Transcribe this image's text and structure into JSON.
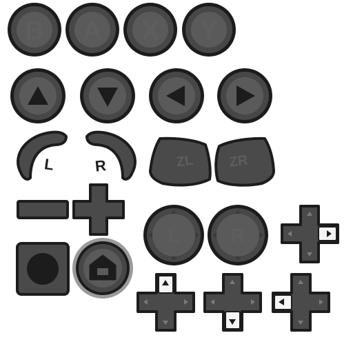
{
  "sheet": {
    "face_buttons": [
      {
        "name": "b",
        "label": "B"
      },
      {
        "name": "a",
        "label": "A"
      },
      {
        "name": "x",
        "label": "X"
      },
      {
        "name": "y",
        "label": "Y"
      }
    ],
    "arrow_buttons": [
      {
        "name": "up",
        "direction": "up"
      },
      {
        "name": "down",
        "direction": "down"
      },
      {
        "name": "left",
        "direction": "left"
      },
      {
        "name": "right",
        "direction": "right"
      }
    ],
    "shoulders": [
      {
        "name": "l",
        "label": "L"
      },
      {
        "name": "r",
        "label": "R"
      }
    ],
    "triggers": [
      {
        "name": "zl",
        "label": "ZL"
      },
      {
        "name": "zr",
        "label": "ZR"
      }
    ],
    "sticks": [
      {
        "name": "left",
        "label": "L"
      },
      {
        "name": "right",
        "label": "R"
      }
    ],
    "dpads": [
      {
        "name": "right-pressed",
        "pressed": "right"
      },
      {
        "name": "up-pressed",
        "pressed": "up"
      },
      {
        "name": "down-pressed",
        "pressed": "down"
      },
      {
        "name": "left-pressed",
        "pressed": "left"
      }
    ],
    "colors": {
      "outline": "#1c1c1c",
      "button_rim": "#464646",
      "button_face": "#5a5a5a",
      "label": "#666666",
      "pressed": "#f4f4f4",
      "home_ring": "#9a9a9a"
    }
  }
}
